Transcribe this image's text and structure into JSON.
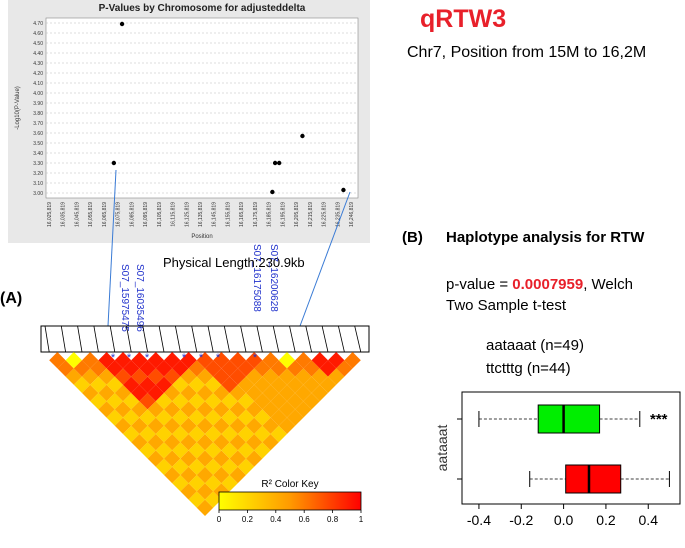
{
  "qtl": {
    "title": "qRTW3",
    "subtitle": "Chr7, Position from 15M to 16,2M"
  },
  "panel_labels": {
    "a": "(A)",
    "b": "(B)"
  },
  "haplotype": {
    "title": "Haplotype analysis for RTW",
    "pvalue_prefix": "p-value = ",
    "pvalue": "0.0007959",
    "pvalue_suffix": ", Welch",
    "test_name": "Two Sample t-test",
    "group1": "aataaat (n=49)",
    "group2": "ttctttg (n=44)"
  },
  "ld": {
    "physical_length": "Physical Length:230.9kb",
    "snp_labels": [
      "S07_15975475",
      "S07_16035496",
      "S07_16175088",
      "S07_16200628"
    ],
    "color_key_title": "R² Color Key",
    "color_key_ticks": [
      "0",
      "0.2",
      "0.4",
      "0.6",
      "0.8",
      "1"
    ]
  },
  "colors": {
    "red": "#e8202a",
    "green": "#00ee00",
    "box_red": "#ff0000"
  },
  "chart_data": [
    {
      "type": "scatter",
      "title": "P-Values by Chromosome for adjusteddelta",
      "xlabel": "Position",
      "ylabel": "-Log10(P-Value)",
      "ylim": [
        2.95,
        4.75
      ],
      "y_ticks": [
        "3.00",
        "3.10",
        "3.20",
        "3.30",
        "3.40",
        "3.50",
        "3.60",
        "3.70",
        "3.80",
        "3.90",
        "4.00",
        "4.10",
        "4.20",
        "4.30",
        "4.40",
        "4.50",
        "4.60",
        "4.70"
      ],
      "x_ticks": [
        "16,025,819",
        "16,035,819",
        "16,045,819",
        "16,055,819",
        "16,065,819",
        "16,075,819",
        "16,085,819",
        "16,095,819",
        "16,105,819",
        "16,115,819",
        "16,125,819",
        "16,135,819",
        "16,145,819",
        "16,155,819",
        "16,165,819",
        "16,175,819",
        "16,185,819",
        "16,195,819",
        "16,205,819",
        "16,215,819",
        "16,225,819",
        "16,235,819",
        "16,246,819"
      ],
      "grid": true,
      "points": [
        {
          "x": 16077819,
          "y": 4.69
        },
        {
          "x": 16071819,
          "y": 3.3
        },
        {
          "x": 16187819,
          "y": 3.01
        },
        {
          "x": 16189819,
          "y": 3.3
        },
        {
          "x": 16192819,
          "y": 3.3
        },
        {
          "x": 16209819,
          "y": 3.57
        },
        {
          "x": 16239819,
          "y": 3.03
        }
      ]
    },
    {
      "type": "box",
      "ylabel": "aataaat",
      "x_ticks": [
        "-0.4",
        "-0.2",
        "0.0",
        "0.2",
        "0.4"
      ],
      "xlim": [
        -0.48,
        0.55
      ],
      "significance": "***",
      "series": [
        {
          "min": -0.4,
          "q1": -0.12,
          "median": 0.0,
          "q3": 0.17,
          "max": 0.36,
          "color": "#00ee00"
        },
        {
          "min": -0.16,
          "q1": 0.01,
          "median": 0.12,
          "q3": 0.27,
          "max": 0.5,
          "color": "#ff0000"
        }
      ]
    }
  ]
}
